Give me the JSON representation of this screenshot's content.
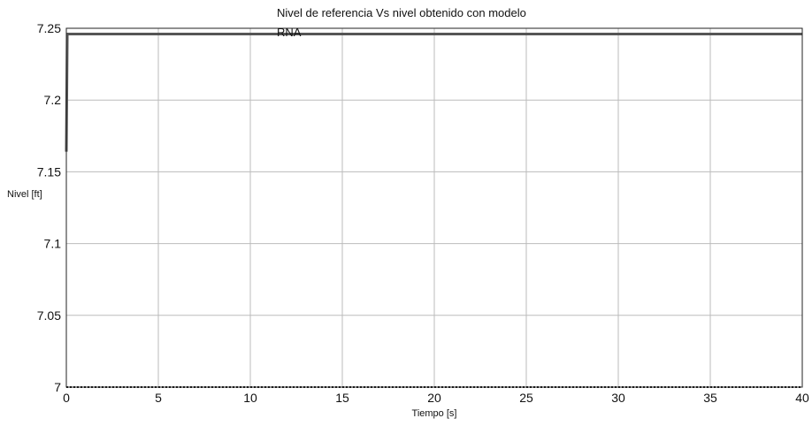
{
  "chart_data": {
    "type": "line",
    "title_lines": [
      "Nivel de referencia Vs nivel obtenido con modelo",
      "RNA"
    ],
    "xlabel": "Tiempo [s]",
    "ylabel": "Nivel [ft]",
    "xlim": [
      0,
      40
    ],
    "ylim": [
      7,
      7.25
    ],
    "x_ticks": [
      0,
      5,
      10,
      15,
      20,
      25,
      30,
      35,
      40
    ],
    "x_tick_labels": [
      "0",
      "5",
      "10",
      "15",
      "20",
      "25",
      "30",
      "35",
      "40"
    ],
    "y_ticks": [
      7,
      7.05,
      7.1,
      7.15,
      7.2,
      7.25
    ],
    "y_tick_labels": [
      "7",
      "7.05",
      "7.1",
      "7.15",
      "7.2",
      "7.25"
    ],
    "grid": true,
    "series": [
      {
        "color": "#555555",
        "style": "solid",
        "x": [
          0,
          0.05,
          0.1,
          0.2,
          5,
          10,
          15,
          20,
          25,
          30,
          35,
          40
        ],
        "y": [
          7.164,
          7.246,
          7.246,
          7.246,
          7.246,
          7.246,
          7.246,
          7.246,
          7.246,
          7.246,
          7.246,
          7.246
        ]
      },
      {
        "color": "#111111",
        "style": "dotted",
        "x": [
          0,
          5,
          10,
          15,
          20,
          25,
          30,
          35,
          40
        ],
        "y": [
          7,
          7,
          7,
          7,
          7,
          7,
          7,
          7,
          7
        ]
      }
    ]
  }
}
